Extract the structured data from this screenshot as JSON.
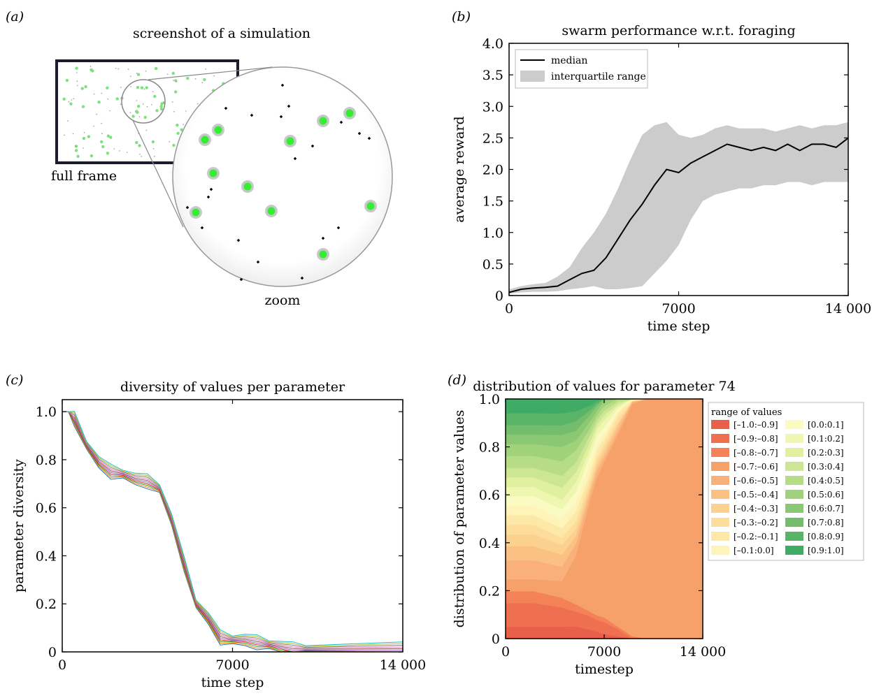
{
  "panels": {
    "a": {
      "label": "(a)",
      "title": "screenshot of a simulation",
      "full_frame_label": "full frame",
      "zoom_label": "zoom"
    },
    "b": {
      "label": "(b)"
    },
    "c": {
      "label": "(c)"
    },
    "d": {
      "label": "(d)"
    }
  },
  "chart_data": [
    {
      "id": "b",
      "type": "line",
      "title": "swarm performance w.r.t. foraging",
      "xlabel": "time step",
      "ylabel": "average reward",
      "xlim": [
        0,
        14000
      ],
      "ylim": [
        0,
        4.0
      ],
      "xticks": [
        0,
        7000,
        14000
      ],
      "xtick_labels": [
        "0",
        "7000",
        "14 000"
      ],
      "yticks": [
        0,
        0.5,
        1.0,
        1.5,
        2.0,
        2.5,
        3.0,
        3.5,
        4.0
      ],
      "ytick_labels": [
        "0",
        "0.5",
        "1.0",
        "1.5",
        "2.0",
        "2.5",
        "3.0",
        "3.5",
        "4.0"
      ],
      "legend": {
        "position": "top-left",
        "entries": [
          "median",
          "interquartile range"
        ]
      },
      "colors": {
        "median": "#000000",
        "iqr": "#cccccc"
      },
      "x": [
        0,
        500,
        1000,
        1500,
        2000,
        2500,
        3000,
        3500,
        4000,
        4500,
        5000,
        5500,
        6000,
        6500,
        7000,
        7500,
        8000,
        8500,
        9000,
        9500,
        10000,
        10500,
        11000,
        11500,
        12000,
        12500,
        13000,
        13500,
        14000
      ],
      "series": [
        {
          "name": "median",
          "values": [
            0.05,
            0.1,
            0.12,
            0.13,
            0.15,
            0.25,
            0.35,
            0.4,
            0.6,
            0.9,
            1.2,
            1.45,
            1.75,
            2.0,
            1.95,
            2.1,
            2.2,
            2.3,
            2.4,
            2.35,
            2.3,
            2.35,
            2.3,
            2.4,
            2.3,
            2.4,
            2.4,
            2.35,
            2.5
          ]
        },
        {
          "name": "interquartile range lower",
          "values": [
            0.03,
            0.05,
            0.06,
            0.06,
            0.07,
            0.1,
            0.12,
            0.15,
            0.1,
            0.1,
            0.12,
            0.15,
            0.35,
            0.55,
            0.8,
            1.2,
            1.5,
            1.6,
            1.65,
            1.7,
            1.7,
            1.75,
            1.75,
            1.8,
            1.8,
            1.75,
            1.8,
            1.8,
            1.8
          ]
        },
        {
          "name": "interquartile range upper",
          "values": [
            0.1,
            0.15,
            0.18,
            0.2,
            0.3,
            0.45,
            0.75,
            1.0,
            1.3,
            1.7,
            2.15,
            2.55,
            2.7,
            2.75,
            2.55,
            2.5,
            2.55,
            2.65,
            2.7,
            2.65,
            2.65,
            2.65,
            2.6,
            2.65,
            2.7,
            2.65,
            2.7,
            2.7,
            2.75
          ]
        }
      ]
    },
    {
      "id": "c",
      "type": "line",
      "title": "diversity of values per parameter",
      "xlabel": "time step",
      "ylabel": "parameter diversity",
      "xlim": [
        0,
        14000
      ],
      "ylim": [
        0,
        1.05
      ],
      "xticks": [
        0,
        7000,
        14000
      ],
      "xtick_labels": [
        "0",
        "7000",
        "14 000"
      ],
      "yticks": [
        0,
        0.2,
        0.4,
        0.6,
        0.8,
        1.0
      ],
      "ytick_labels": [
        "0",
        "0.2",
        "0.4",
        "0.6",
        "0.8",
        "1.0"
      ],
      "colors": [
        "#1f77b4",
        "#ff7f0e",
        "#2ca02c",
        "#d62728",
        "#9467bd",
        "#8c564b",
        "#e377c2",
        "#7f7f7f",
        "#bcbd22",
        "#17becf"
      ],
      "x": [
        0,
        250,
        500,
        1000,
        1500,
        2000,
        2500,
        3000,
        3500,
        4000,
        4500,
        5000,
        5500,
        6000,
        6500,
        7000,
        7500,
        8000,
        8500,
        9000,
        9500,
        10000,
        12000,
        14000
      ],
      "series": [
        {
          "values": [
            1.0,
            1.0,
            0.97,
            0.86,
            0.79,
            0.75,
            0.74,
            0.72,
            0.71,
            0.68,
            0.55,
            0.37,
            0.2,
            0.14,
            0.06,
            0.05,
            0.05,
            0.04,
            0.03,
            0.02,
            0.01,
            0.01,
            0.01,
            0.01
          ]
        }
      ]
    },
    {
      "id": "d",
      "type": "area",
      "title": "distribution of values for parameter 74",
      "xlabel": "timestep",
      "ylabel": "distribution of parameter values",
      "xlim": [
        0,
        14000
      ],
      "ylim": [
        0,
        1.0
      ],
      "xticks": [
        0,
        7000,
        14000
      ],
      "xtick_labels": [
        "0",
        "7000",
        "14 000"
      ],
      "yticks": [
        0,
        0.2,
        0.4,
        0.6,
        0.8,
        1.0
      ],
      "ytick_labels": [
        "0",
        "0.2",
        "0.4",
        "0.6",
        "0.8",
        "1.0"
      ],
      "legend": {
        "position": "right",
        "title": "range of values"
      },
      "x": [
        0,
        2000,
        4000,
        5000,
        6000,
        6500,
        7000,
        8000,
        9000,
        10000,
        14000
      ],
      "series": [
        {
          "name": "[–1.0:–0.9]",
          "color": "#e8604a",
          "values": [
            0.05,
            0.05,
            0.05,
            0.05,
            0.04,
            0.03,
            0.02,
            0.01,
            0.0,
            0.0,
            0.0
          ]
        },
        {
          "name": "[–0.9:–0.8]",
          "color": "#ef7050",
          "values": [
            0.1,
            0.1,
            0.08,
            0.06,
            0.06,
            0.05,
            0.05,
            0.03,
            0.0,
            0.0,
            0.0
          ]
        },
        {
          "name": "[–0.8:–0.7]",
          "color": "#f38258",
          "values": [
            0.05,
            0.05,
            0.04,
            0.03,
            0.02,
            0.02,
            0.02,
            0.01,
            0.01,
            0.0,
            0.0
          ]
        },
        {
          "name": "[–0.7:–0.6]",
          "color": "#f6a06a",
          "values": [
            0.05,
            0.05,
            0.07,
            0.2,
            0.5,
            0.6,
            0.66,
            0.83,
            0.97,
            1.0,
            1.0
          ]
        },
        {
          "name": "[–0.6:–0.5]",
          "color": "#f9b07a",
          "values": [
            0.08,
            0.08,
            0.06,
            0.05,
            0.03,
            0.03,
            0.02,
            0.02,
            0.01,
            0.0,
            0.0
          ]
        },
        {
          "name": "[–0.5:–0.4]",
          "color": "#fbc184",
          "values": [
            0.06,
            0.06,
            0.05,
            0.03,
            0.02,
            0.02,
            0.02,
            0.02,
            0.0,
            0.0,
            0.0
          ]
        },
        {
          "name": "[–0.4:–0.3]",
          "color": "#fcd08f",
          "values": [
            0.05,
            0.05,
            0.04,
            0.03,
            0.02,
            0.02,
            0.02,
            0.01,
            0.0,
            0.0,
            0.0
          ]
        },
        {
          "name": "[–0.3:–0.2]",
          "color": "#fddc9c",
          "values": [
            0.04,
            0.04,
            0.03,
            0.03,
            0.02,
            0.02,
            0.02,
            0.02,
            0.0,
            0.0,
            0.0
          ]
        },
        {
          "name": "[–0.2:–0.1]",
          "color": "#fee8a8",
          "values": [
            0.04,
            0.04,
            0.04,
            0.04,
            0.03,
            0.03,
            0.02,
            0.02,
            0.01,
            0.0,
            0.0
          ]
        },
        {
          "name": "[–0.1:0.0]",
          "color": "#fef3b8",
          "values": [
            0.04,
            0.04,
            0.04,
            0.04,
            0.04,
            0.03,
            0.02,
            0.01,
            0.0,
            0.0,
            0.0
          ]
        },
        {
          "name": "[0.0:0.1]",
          "color": "#fafbc2",
          "values": [
            0.04,
            0.04,
            0.04,
            0.04,
            0.04,
            0.03,
            0.03,
            0.01,
            0.0,
            0.0,
            0.0
          ]
        },
        {
          "name": "[0.1:0.2]",
          "color": "#eef6b0",
          "values": [
            0.04,
            0.04,
            0.04,
            0.04,
            0.03,
            0.03,
            0.03,
            0.01,
            0.0,
            0.0,
            0.0
          ]
        },
        {
          "name": "[0.2:0.3]",
          "color": "#e0f0a0",
          "values": [
            0.04,
            0.04,
            0.05,
            0.04,
            0.03,
            0.02,
            0.02,
            0.01,
            0.0,
            0.0,
            0.0
          ]
        },
        {
          "name": "[0.3:0.4]",
          "color": "#cce694",
          "values": [
            0.04,
            0.04,
            0.05,
            0.04,
            0.03,
            0.02,
            0.02,
            0.01,
            0.0,
            0.0,
            0.0
          ]
        },
        {
          "name": "[0.4:0.5]",
          "color": "#b6dc88",
          "values": [
            0.05,
            0.05,
            0.06,
            0.05,
            0.03,
            0.02,
            0.02,
            0.01,
            0.0,
            0.0,
            0.0
          ]
        },
        {
          "name": "[0.5:0.6]",
          "color": "#a0d27c",
          "values": [
            0.05,
            0.05,
            0.06,
            0.04,
            0.03,
            0.02,
            0.02,
            0.0,
            0.0,
            0.0,
            0.0
          ]
        },
        {
          "name": "[0.6:0.7]",
          "color": "#8ac874",
          "values": [
            0.04,
            0.04,
            0.05,
            0.04,
            0.03,
            0.02,
            0.01,
            0.0,
            0.0,
            0.0,
            0.0
          ]
        },
        {
          "name": "[0.7:0.8]",
          "color": "#74bd6c",
          "values": [
            0.04,
            0.04,
            0.04,
            0.04,
            0.02,
            0.01,
            0.0,
            0.0,
            0.0,
            0.0,
            0.0
          ]
        },
        {
          "name": "[0.8:0.9]",
          "color": "#5ab468",
          "values": [
            0.05,
            0.05,
            0.05,
            0.04,
            0.02,
            0.01,
            0.0,
            0.0,
            0.0,
            0.0,
            0.0
          ]
        },
        {
          "name": "[0.9:1.0]",
          "color": "#3fab64",
          "values": [
            0.06,
            0.06,
            0.06,
            0.05,
            0.03,
            0.01,
            0.0,
            0.0,
            0.0,
            0.0,
            0.0
          ]
        }
      ]
    }
  ]
}
